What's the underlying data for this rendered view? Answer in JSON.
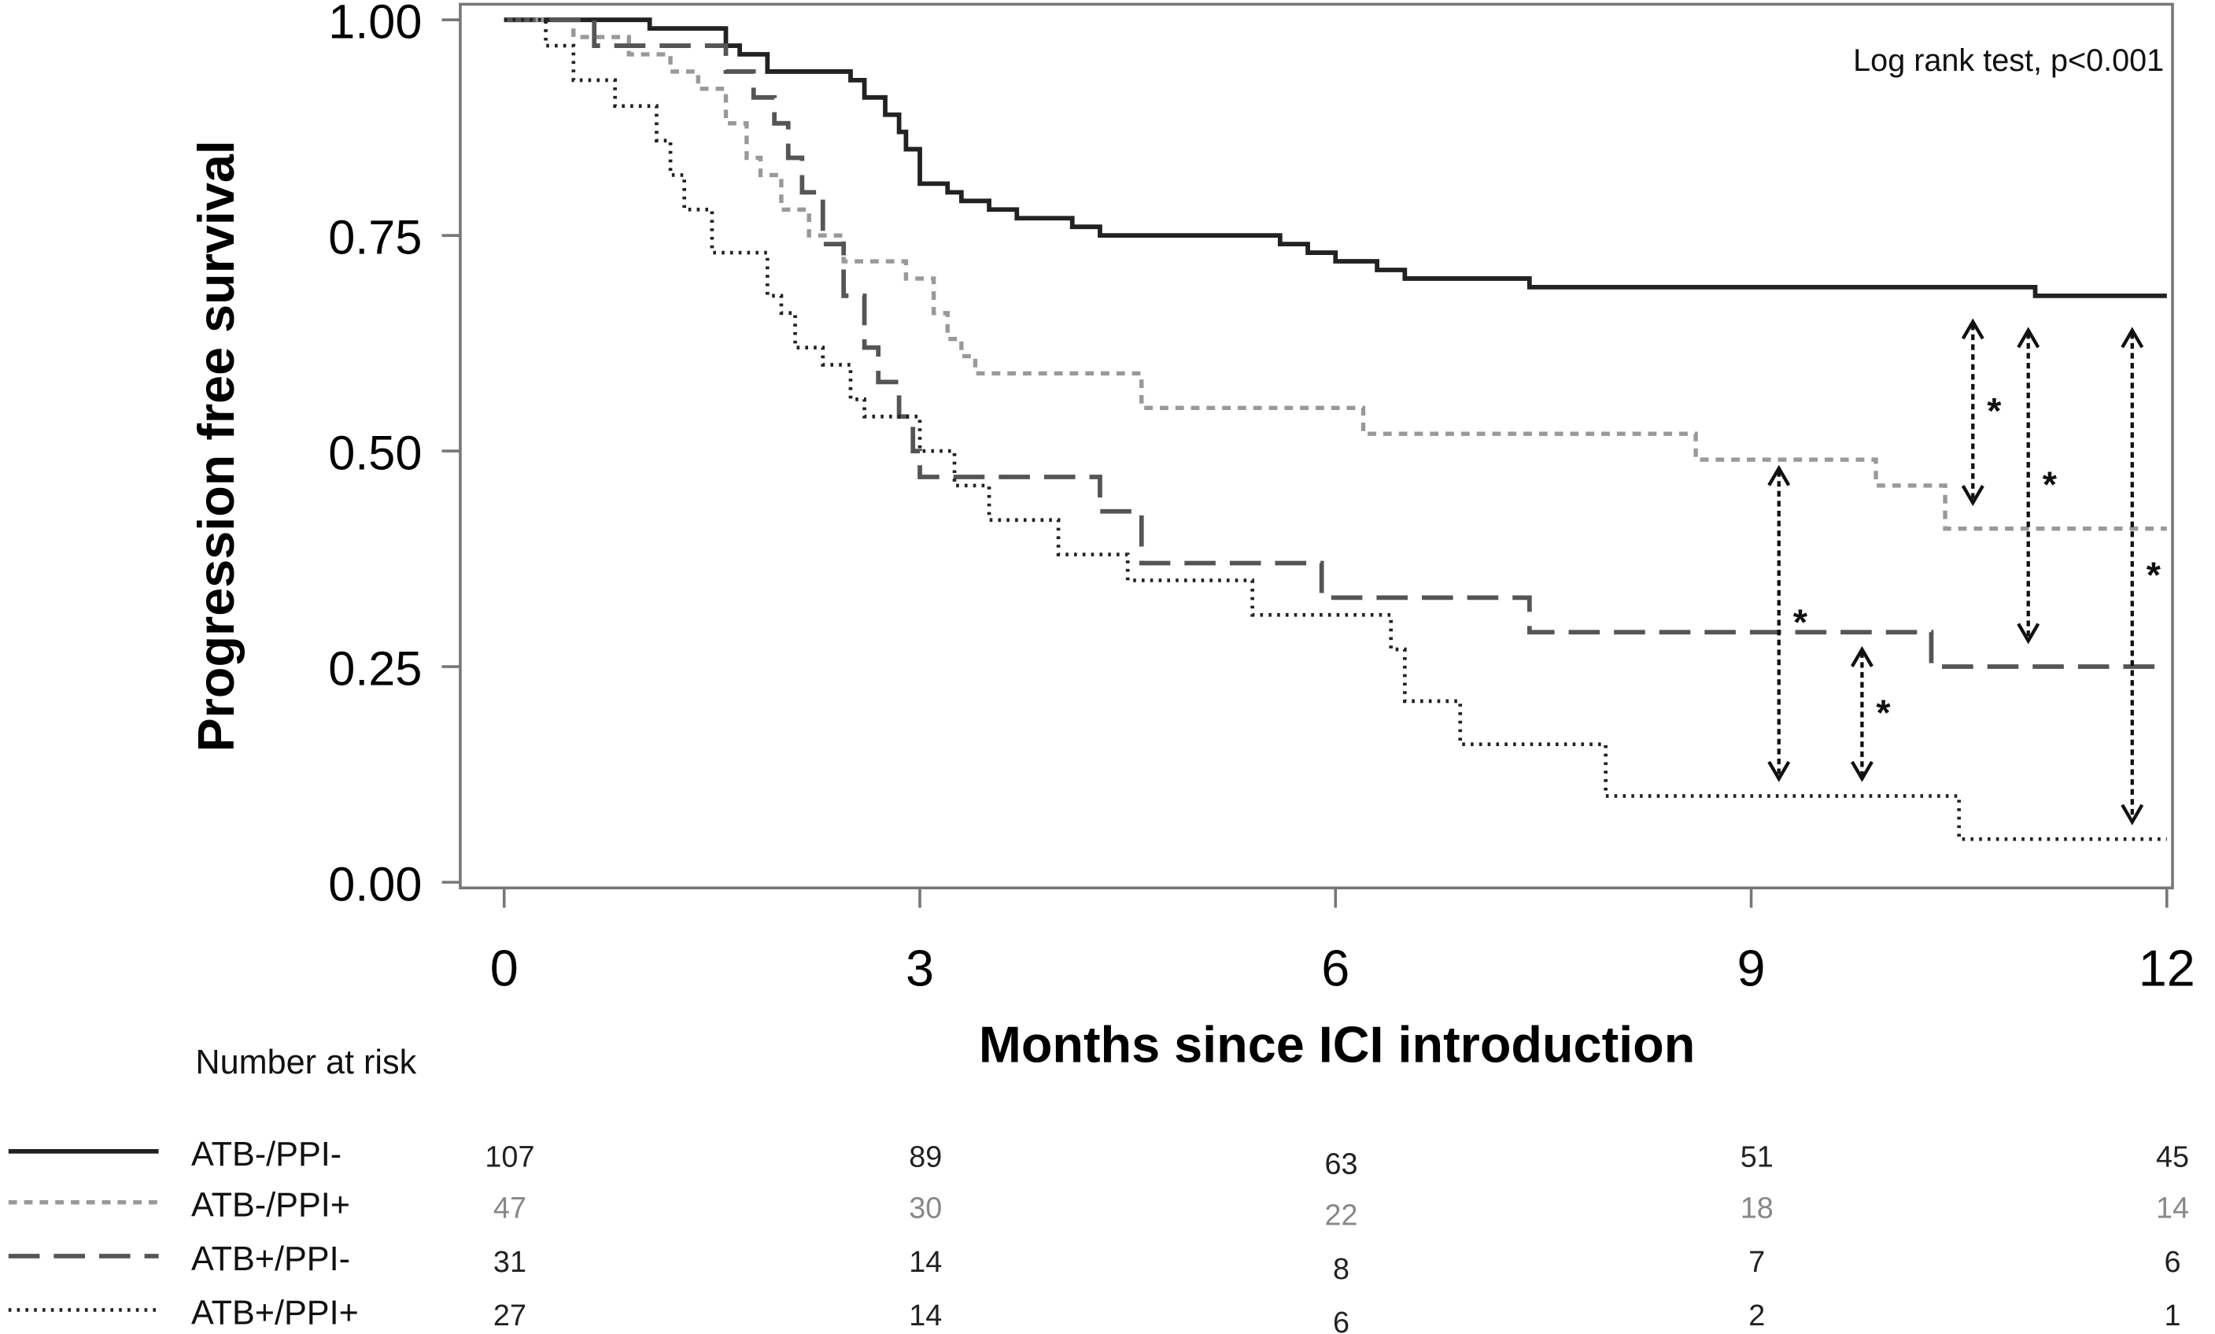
{
  "chart_data": {
    "type": "line",
    "subtype": "kaplan-meier step plot",
    "title": "",
    "xlabel": "Months since ICI introduction",
    "ylabel": "Progression free survival",
    "xlim": [
      0,
      12
    ],
    "ylim": [
      0,
      1
    ],
    "xticks": [
      0,
      3,
      6,
      9,
      12
    ],
    "xtick_labels": [
      "0",
      "3",
      "6",
      "9",
      "12"
    ],
    "yticks": [
      0,
      0.25,
      0.5,
      0.75,
      1
    ],
    "ytick_labels": [
      "0.00",
      "0.25",
      "0.50",
      "0.75",
      "1.00"
    ],
    "grid": false,
    "annotation": "Log rank test, p<0.001",
    "significance_marker": "*",
    "series": [
      {
        "name": "ATB-/PPI-",
        "color": "#222222",
        "style": "solid",
        "steps": [
          [
            0,
            1
          ],
          [
            1.05,
            0.99
          ],
          [
            1.6,
            0.97
          ],
          [
            1.7,
            0.96
          ],
          [
            1.9,
            0.94
          ],
          [
            2.5,
            0.93
          ],
          [
            2.6,
            0.91
          ],
          [
            2.75,
            0.89
          ],
          [
            2.85,
            0.87
          ],
          [
            2.9,
            0.85
          ],
          [
            3.0,
            0.81
          ],
          [
            3.2,
            0.8
          ],
          [
            3.3,
            0.79
          ],
          [
            3.5,
            0.78
          ],
          [
            3.7,
            0.77
          ],
          [
            4.1,
            0.76
          ],
          [
            4.3,
            0.75
          ],
          [
            5.6,
            0.74
          ],
          [
            5.8,
            0.73
          ],
          [
            6.0,
            0.72
          ],
          [
            6.3,
            0.71
          ],
          [
            6.5,
            0.7
          ],
          [
            7.4,
            0.69
          ],
          [
            11.05,
            0.68
          ],
          [
            12,
            0.68
          ]
        ]
      },
      {
        "name": "ATB-/PPI+",
        "color": "#999999",
        "style": "dashed",
        "steps": [
          [
            0,
            1
          ],
          [
            0.5,
            0.98
          ],
          [
            0.9,
            0.96
          ],
          [
            1.2,
            0.94
          ],
          [
            1.4,
            0.92
          ],
          [
            1.6,
            0.88
          ],
          [
            1.75,
            0.84
          ],
          [
            1.85,
            0.82
          ],
          [
            2.0,
            0.78
          ],
          [
            2.2,
            0.75
          ],
          [
            2.45,
            0.72
          ],
          [
            2.9,
            0.7
          ],
          [
            3.1,
            0.66
          ],
          [
            3.2,
            0.63
          ],
          [
            3.3,
            0.61
          ],
          [
            3.4,
            0.59
          ],
          [
            4.6,
            0.55
          ],
          [
            6.2,
            0.52
          ],
          [
            8.6,
            0.49
          ],
          [
            9.9,
            0.46
          ],
          [
            10.4,
            0.41
          ],
          [
            12,
            0.41
          ]
        ]
      },
      {
        "name": "ATB+/PPI-",
        "color": "#555555",
        "style": "long-dash",
        "steps": [
          [
            0,
            1
          ],
          [
            0.65,
            0.97
          ],
          [
            1.6,
            0.94
          ],
          [
            1.8,
            0.91
          ],
          [
            1.95,
            0.88
          ],
          [
            2.05,
            0.84
          ],
          [
            2.15,
            0.8
          ],
          [
            2.3,
            0.74
          ],
          [
            2.45,
            0.68
          ],
          [
            2.6,
            0.62
          ],
          [
            2.7,
            0.58
          ],
          [
            2.85,
            0.54
          ],
          [
            2.95,
            0.5
          ],
          [
            3.0,
            0.47
          ],
          [
            4.3,
            0.43
          ],
          [
            4.6,
            0.37
          ],
          [
            5.9,
            0.33
          ],
          [
            7.4,
            0.29
          ],
          [
            10.3,
            0.25
          ],
          [
            12,
            0.25
          ]
        ]
      },
      {
        "name": "ATB+/PPI+",
        "color": "#222222",
        "style": "dotted",
        "steps": [
          [
            0,
            1
          ],
          [
            0.3,
            0.97
          ],
          [
            0.5,
            0.93
          ],
          [
            0.8,
            0.9
          ],
          [
            1.1,
            0.86
          ],
          [
            1.2,
            0.82
          ],
          [
            1.3,
            0.78
          ],
          [
            1.5,
            0.73
          ],
          [
            1.9,
            0.68
          ],
          [
            2.0,
            0.66
          ],
          [
            2.1,
            0.62
          ],
          [
            2.3,
            0.6
          ],
          [
            2.5,
            0.56
          ],
          [
            2.6,
            0.54
          ],
          [
            3.0,
            0.5
          ],
          [
            3.25,
            0.46
          ],
          [
            3.5,
            0.42
          ],
          [
            4.0,
            0.38
          ],
          [
            4.5,
            0.35
          ],
          [
            5.4,
            0.31
          ],
          [
            6.4,
            0.27
          ],
          [
            6.5,
            0.21
          ],
          [
            6.9,
            0.16
          ],
          [
            7.95,
            0.1
          ],
          [
            10.5,
            0.05
          ],
          [
            12,
            0.05
          ]
        ]
      }
    ],
    "comparisons": [
      {
        "x": 9.2,
        "y1": 0.48,
        "y2": 0.12
      },
      {
        "x": 9.8,
        "y1": 0.27,
        "y2": 0.12
      },
      {
        "x": 10.6,
        "y1": 0.65,
        "y2": 0.44
      },
      {
        "x": 11.0,
        "y1": 0.64,
        "y2": 0.28
      },
      {
        "x": 11.75,
        "y1": 0.64,
        "y2": 0.07
      }
    ],
    "risk_table": {
      "title": "Number at risk",
      "times": [
        0,
        3,
        6,
        9,
        12
      ],
      "rows": [
        {
          "label": "ATB-/PPI-",
          "color": "#222222",
          "values": [
            "107",
            "89",
            "63",
            "51",
            "45"
          ]
        },
        {
          "label": "ATB-/PPI+",
          "color": "#888888",
          "values": [
            "47",
            "30",
            "22",
            "18",
            "14"
          ]
        },
        {
          "label": "ATB+/PPI-",
          "color": "#222222",
          "values": [
            "31",
            "14",
            "8",
            "7",
            "6"
          ]
        },
        {
          "label": "ATB+/PPI+",
          "color": "#222222",
          "values": [
            "27",
            "14",
            "6",
            "2",
            "1"
          ]
        }
      ]
    }
  }
}
